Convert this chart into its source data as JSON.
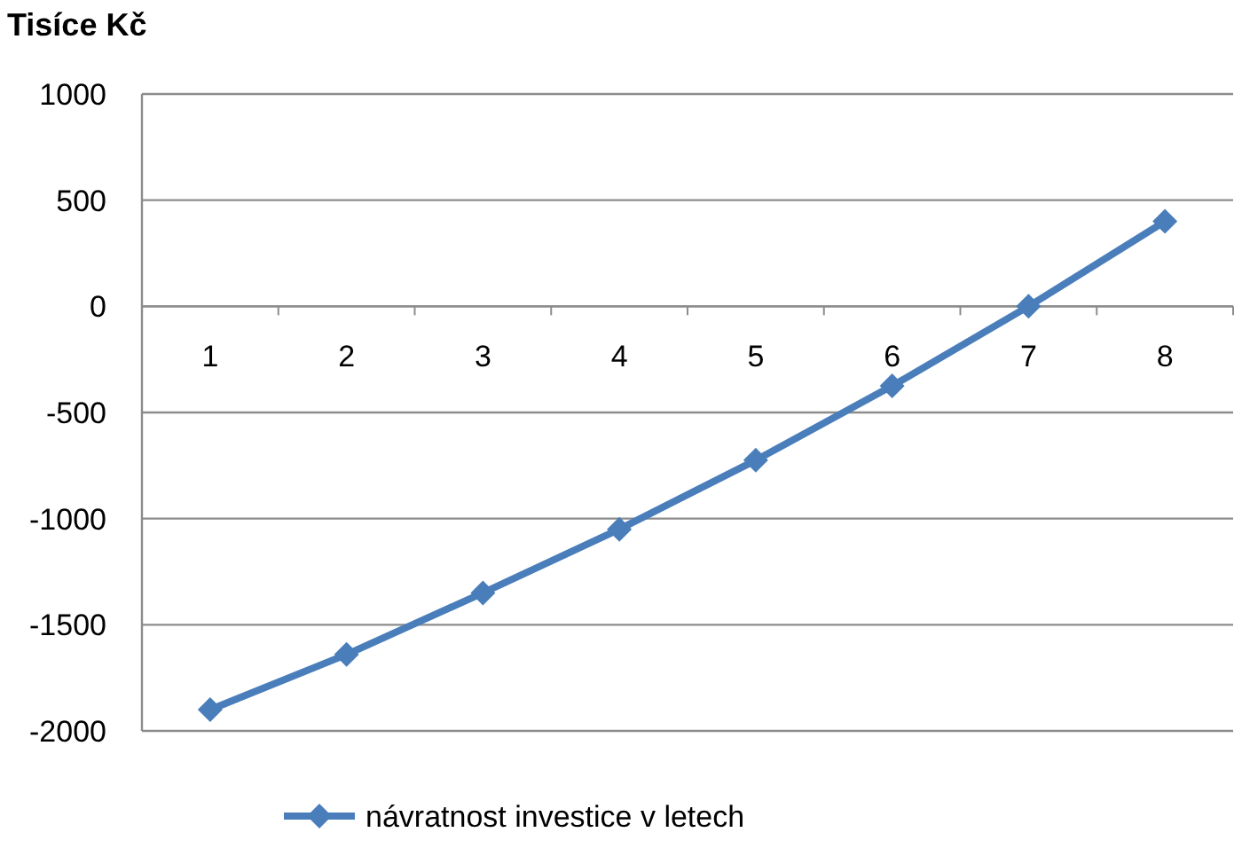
{
  "chart_data": {
    "type": "line",
    "ylabel": "Tisíce Kč",
    "categories": [
      "1",
      "2",
      "3",
      "4",
      "5",
      "6",
      "7",
      "8"
    ],
    "series": [
      {
        "name": "návratnost investice v letech",
        "color": "#4a7ebb",
        "values": [
          -1900,
          -1640,
          -1350,
          -1050,
          -725,
          -375,
          0,
          400
        ]
      }
    ],
    "ylim": [
      -2000,
      1000
    ],
    "yticks": [
      -2000,
      -1500,
      -1000,
      -500,
      0,
      500,
      1000
    ],
    "grid": "y",
    "legend": "bottom",
    "marker": "diamond",
    "line_style": "solid"
  }
}
